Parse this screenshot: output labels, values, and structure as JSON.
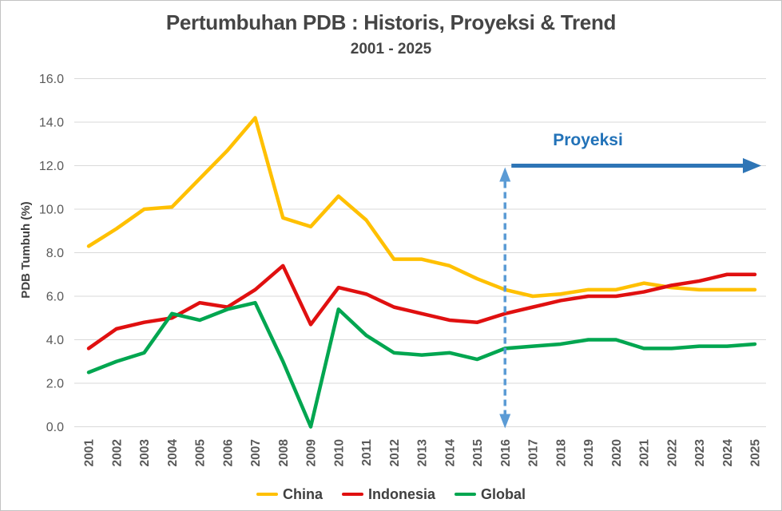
{
  "chart_data": {
    "type": "line",
    "title": "Pertumbuhan PDB : Historis, Proyeksi & Trend",
    "subtitle": "2001 - 2025",
    "xlabel": "",
    "ylabel": "PDB Tumbuh (%)",
    "ylim": [
      0,
      16
    ],
    "ytick_labels": [
      "0.0",
      "2.0",
      "4.0",
      "6.0",
      "8.0",
      "10.0",
      "12.0",
      "14.0",
      "16.0"
    ],
    "grid": "horizontal",
    "legend_position": "bottom",
    "categories": [
      "2001",
      "2002",
      "2003",
      "2004",
      "2005",
      "2006",
      "2007",
      "2008",
      "2009",
      "2010",
      "2011",
      "2012",
      "2013",
      "2014",
      "2015",
      "2016",
      "2017",
      "2018",
      "2019",
      "2020",
      "2021",
      "2022",
      "2023",
      "2024",
      "2025"
    ],
    "series": [
      {
        "name": "China",
        "color": "#FFC000",
        "values": [
          8.3,
          9.1,
          10.0,
          10.1,
          11.4,
          12.7,
          14.2,
          9.6,
          9.2,
          10.6,
          9.5,
          7.7,
          7.7,
          7.4,
          6.8,
          6.3,
          6.0,
          6.1,
          6.3,
          6.3,
          6.6,
          6.4,
          6.3,
          6.3,
          6.3
        ]
      },
      {
        "name": "Indonesia",
        "color": "#E01010",
        "values": [
          3.6,
          4.5,
          4.8,
          5.0,
          5.7,
          5.5,
          6.3,
          7.4,
          4.7,
          6.4,
          6.1,
          5.5,
          5.2,
          4.9,
          4.8,
          5.2,
          5.5,
          5.8,
          6.0,
          6.0,
          6.2,
          6.5,
          6.7,
          7.0,
          7.0
        ]
      },
      {
        "name": "Global",
        "color": "#00A650",
        "values": [
          2.5,
          3.0,
          3.4,
          5.2,
          4.9,
          5.4,
          5.7,
          3.0,
          0.0,
          5.4,
          4.2,
          3.4,
          3.3,
          3.4,
          3.1,
          3.6,
          3.7,
          3.8,
          4.0,
          4.0,
          3.6,
          3.6,
          3.7,
          3.7,
          3.8
        ]
      }
    ],
    "annotation": {
      "label": "Proyeksi",
      "start_category": "2016",
      "arrow_level": 12.0,
      "solid_arrow_color": "#2E75B6",
      "dashed_arrow_color": "#5B9BD5",
      "label_color": "#2272B8"
    },
    "axis_text_color": "#595959",
    "gridline_color": "#D9D9D9"
  }
}
